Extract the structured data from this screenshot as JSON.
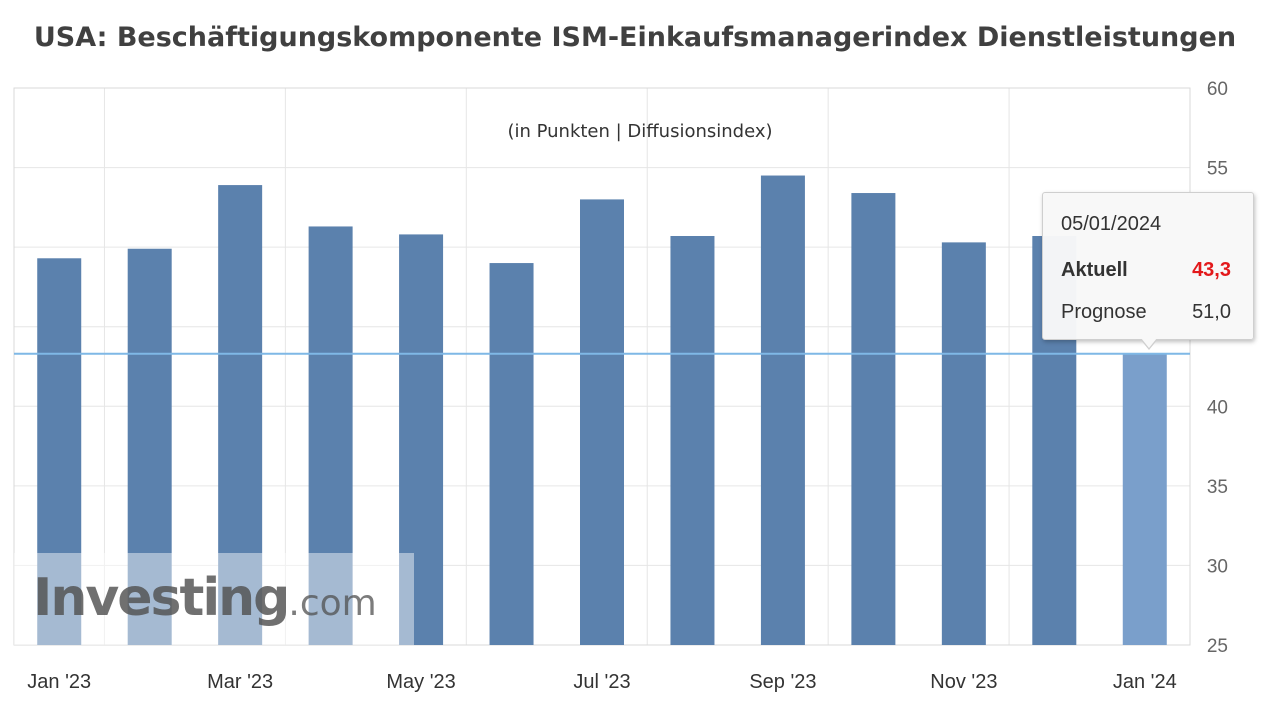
{
  "title": "USA: Beschäftigungskomponente ISM-Einkaufsmanagerindex Dienstleistungen",
  "chart_data": {
    "type": "bar",
    "subtitle": "(in Punkten | Diffusionsindex)",
    "categories": [
      "Jan '23",
      "Feb '23",
      "Mar '23",
      "Apr '23",
      "May '23",
      "Jun '23",
      "Jul '23",
      "Aug '23",
      "Sep '23",
      "Oct '23",
      "Nov '23",
      "Dec '23",
      "Jan '24"
    ],
    "x_tick_labels": [
      "Jan '23",
      "Mar '23",
      "May '23",
      "Jul '23",
      "Sep '23",
      "Nov '23",
      "Jan '24"
    ],
    "values": [
      49.3,
      49.9,
      53.9,
      51.3,
      50.8,
      49.0,
      53.0,
      50.7,
      54.5,
      53.4,
      50.3,
      50.7,
      43.3
    ],
    "ylim": [
      25,
      60
    ],
    "y_ticks": [
      25,
      30,
      35,
      40,
      45,
      50,
      55,
      60
    ],
    "y_tick_labels": [
      "25",
      "30",
      "35",
      "40",
      "",
      "",
      "55",
      "60"
    ],
    "y_axis_side": "right",
    "grid": true,
    "reference_line": 43.3,
    "highlighted_category": "Jan '24",
    "colors": {
      "bar": "#5b81ad",
      "bar_highlight": "#7a9fcb",
      "reference_line": "#7fb8e6",
      "grid": "#e6e6e6"
    },
    "tooltip": {
      "date": "05/01/2024",
      "actual_label": "Aktuell",
      "actual_value": "43,3",
      "forecast_label": "Prognose",
      "forecast_value": "51,0"
    }
  },
  "watermark": {
    "brand": "Investing",
    "tld": ".com"
  }
}
